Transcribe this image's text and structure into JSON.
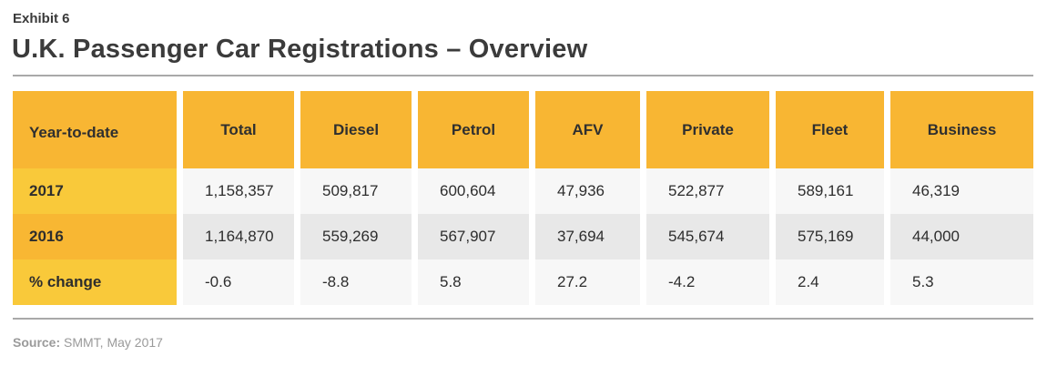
{
  "header": {
    "exhibit": "Exhibit 6",
    "title": "U.K. Passenger Car Registrations – Overview"
  },
  "table": {
    "columns": [
      "Year-to-date",
      "Total",
      "Diesel",
      "Petrol",
      "AFV",
      "Private",
      "Fleet",
      "Business"
    ],
    "rows": [
      {
        "label": "2017",
        "values": [
          "1,158,357",
          "509,817",
          "600,604",
          "47,936",
          "522,877",
          "589,161",
          "46,319"
        ]
      },
      {
        "label": "2016",
        "values": [
          "1,164,870",
          "559,269",
          "567,907",
          "37,694",
          "545,674",
          "575,169",
          "44,000"
        ]
      },
      {
        "label": "% change",
        "values": [
          "-0.6",
          "-8.8",
          "5.8",
          "27.2",
          "-4.2",
          "2.4",
          "5.3"
        ]
      }
    ]
  },
  "footer": {
    "source_label": "Source:",
    "source_text": "SMMT, May 2017"
  },
  "colors": {
    "header_fill": "#f8b633",
    "row_label_light": "#f9c93a",
    "row_label_dark": "#f8b733",
    "cell_light": "#f7f7f7",
    "cell_dark": "#e8e8e8"
  }
}
